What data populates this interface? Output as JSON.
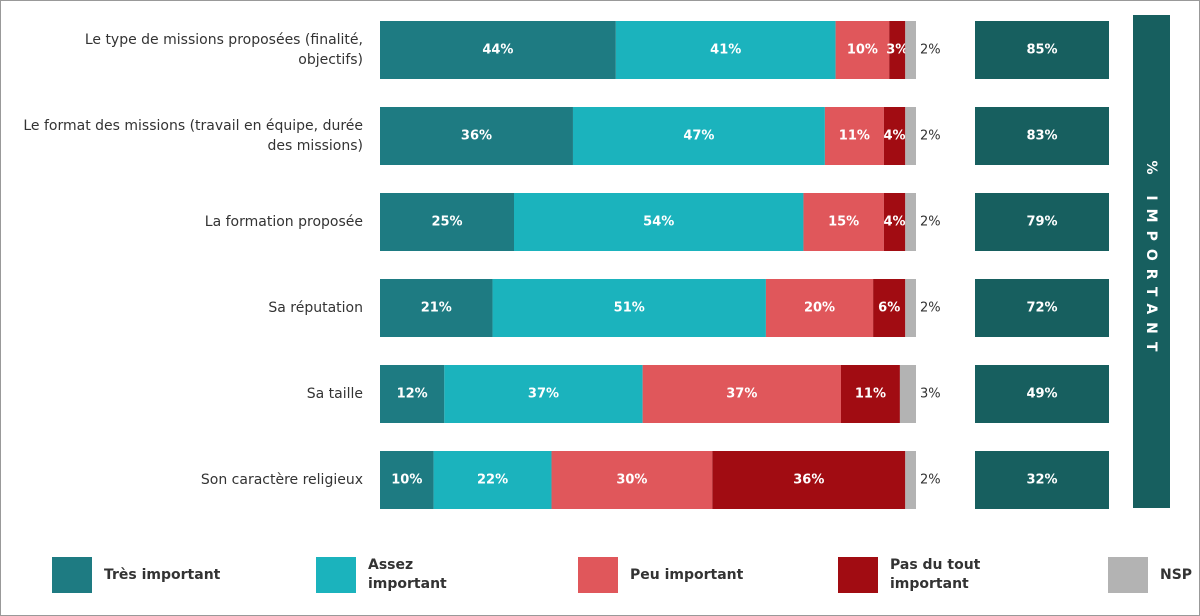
{
  "chart_data": {
    "type": "stacked_bar_horizontal",
    "categories": [
      "Le type de missions proposées (finalité, objectifs)",
      "Le format des missions (travail en équipe, durée des missions)",
      "La formation proposée",
      "Sa réputation",
      "Sa taille",
      "Son caractère religieux"
    ],
    "series": [
      {
        "name": "Très important",
        "color": "#1e7b82",
        "values": [
          44,
          36,
          25,
          21,
          12,
          10
        ],
        "value_labels": [
          "44%",
          "36%",
          "25%",
          "21%",
          "12%",
          "10%"
        ]
      },
      {
        "name": "Assez important",
        "color": "#1bb3bd",
        "values": [
          41,
          47,
          54,
          51,
          37,
          22
        ],
        "value_labels": [
          "41%",
          "47%",
          "54%",
          "51%",
          "37%",
          "22%"
        ]
      },
      {
        "name": "Peu important",
        "color": "#e0575b",
        "values": [
          10,
          11,
          15,
          20,
          37,
          30
        ],
        "value_labels": [
          "10%",
          "11%",
          "15%",
          "20%",
          "37%",
          "30%"
        ]
      },
      {
        "name": "Pas du tout important",
        "color": "#a10c12",
        "values": [
          3,
          4,
          4,
          6,
          11,
          36
        ],
        "value_labels": [
          "3%",
          "4%",
          "4%",
          "6%",
          "11%",
          "36%"
        ]
      },
      {
        "name": "NSP",
        "color": "#b3b3b3",
        "values": [
          2,
          2,
          2,
          2,
          3,
          2
        ],
        "value_labels": [
          "2%",
          "2%",
          "2%",
          "2%",
          "3%",
          "2%"
        ]
      }
    ],
    "xlim": [
      0,
      100
    ],
    "totals": {
      "title": "% IMPORTANT",
      "color": "#175f5f",
      "values": [
        85,
        83,
        79,
        72,
        49,
        32
      ],
      "value_labels": [
        "85%",
        "83%",
        "79%",
        "72%",
        "49%",
        "32%"
      ]
    }
  }
}
